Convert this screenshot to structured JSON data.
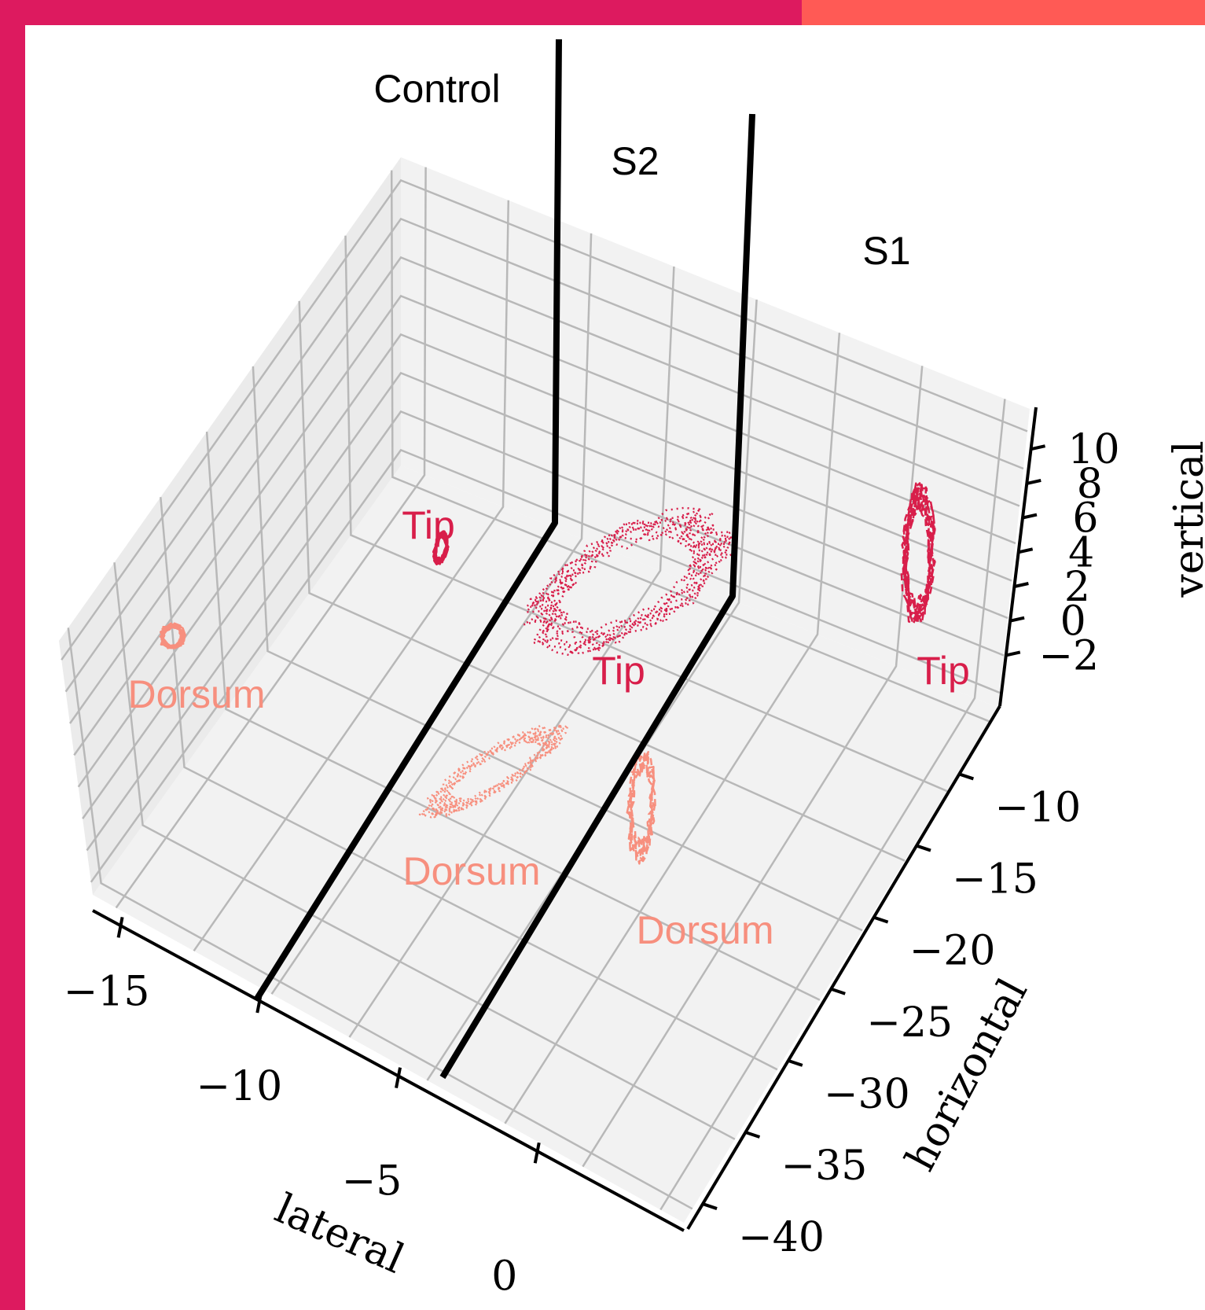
{
  "chart_data": {
    "type": "scatter",
    "projection": "3d",
    "title": "",
    "axes": {
      "lateral": {
        "label": "lateral",
        "ticks": [
          {
            "value": -15,
            "label": "−15"
          },
          {
            "value": -10,
            "label": "−10"
          },
          {
            "value": -5,
            "label": "−5"
          },
          {
            "value": 0,
            "label": "0"
          }
        ]
      },
      "horizontal": {
        "label": "horizontal",
        "ticks": [
          {
            "value": -10,
            "label": "−10"
          },
          {
            "value": -15,
            "label": "−15"
          },
          {
            "value": -20,
            "label": "−20"
          },
          {
            "value": -25,
            "label": "−25"
          },
          {
            "value": -30,
            "label": "−30"
          },
          {
            "value": -35,
            "label": "−35"
          },
          {
            "value": -40,
            "label": "−40"
          }
        ]
      },
      "vertical": {
        "label": "vertical",
        "ticks": [
          {
            "value": 10,
            "label": "10"
          },
          {
            "value": 8,
            "label": "8"
          },
          {
            "value": 6,
            "label": "6"
          },
          {
            "value": 4,
            "label": "4"
          },
          {
            "value": 2,
            "label": "2"
          },
          {
            "value": 0,
            "label": "0"
          },
          {
            "value": -2,
            "label": "−2"
          }
        ]
      }
    },
    "grid": true,
    "groups": [
      {
        "name": "Control",
        "series": [
          {
            "name": "Tip",
            "color": "#d81e4a",
            "line_style": "solid"
          },
          {
            "name": "Dorsum",
            "color": "#f78f7e",
            "line_style": "solid"
          }
        ]
      },
      {
        "name": "S2",
        "series": [
          {
            "name": "Tip",
            "color": "#d81e4a",
            "line_style": "dotted"
          },
          {
            "name": "Dorsum",
            "color": "#f78f7e",
            "line_style": "dotted"
          }
        ]
      },
      {
        "name": "S1",
        "series": [
          {
            "name": "Tip",
            "color": "#d81e4a",
            "line_style": "dashed"
          },
          {
            "name": "Dorsum",
            "color": "#f78f7e",
            "line_style": "dashed"
          }
        ]
      }
    ]
  },
  "colors": {
    "frame": "#dd1a5f",
    "frame_accent": "#ff5a55",
    "panel": "#ffffff",
    "pane": "#f2f2f2",
    "grid": "#b8b8b8",
    "axis": "#000000",
    "tip": "#d81e4a",
    "dorsum": "#f78f7e",
    "divider": "#000000"
  }
}
